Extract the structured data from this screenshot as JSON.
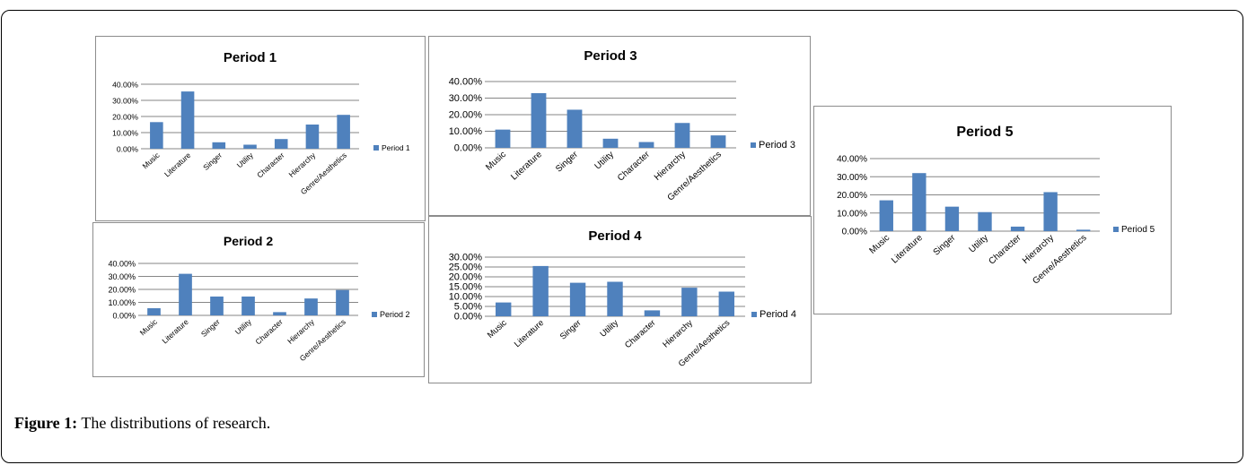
{
  "figure": {
    "caption_label": "Figure 1:",
    "caption_text": " The distributions of research."
  },
  "colors": {
    "bar": "#4f81bd",
    "grid": "#868686",
    "text": "#000000"
  },
  "chart_data": [
    {
      "type": "bar",
      "title": "Period 1",
      "categories": [
        "Music",
        "Literature",
        "Singer",
        "Utility",
        "Character",
        "Hierarchy",
        "Genre/Aesthetics"
      ],
      "values": [
        16.5,
        35.5,
        4.0,
        2.5,
        6.0,
        15.0,
        21.0
      ],
      "yticks": [
        "0.00%",
        "10.00%",
        "20.00%",
        "30.00%",
        "40.00%"
      ],
      "ylim": [
        0,
        40
      ],
      "legend": "Period 1",
      "legend_position": "right"
    },
    {
      "type": "bar",
      "title": "Period 2",
      "categories": [
        "Music",
        "Literature",
        "Singer",
        "Utility",
        "Character",
        "Hierarchy",
        "Genre/Aesthetics"
      ],
      "values": [
        5.5,
        32.0,
        14.5,
        14.5,
        2.5,
        13.0,
        19.5
      ],
      "yticks": [
        "0.00%",
        "10.00%",
        "20.00%",
        "30.00%",
        "40.00%"
      ],
      "ylim": [
        0,
        40
      ],
      "legend": "Period 2",
      "legend_position": "right"
    },
    {
      "type": "bar",
      "title": "Period 3",
      "categories": [
        "Music",
        "Literature",
        "Singer",
        "Utility",
        "Character",
        "Hierarchy",
        "Genre/Aesthetics"
      ],
      "values": [
        11.0,
        33.0,
        23.0,
        5.5,
        3.5,
        15.0,
        7.5
      ],
      "yticks": [
        "0.00%",
        "10.00%",
        "20.00%",
        "30.00%",
        "40.00%"
      ],
      "ylim": [
        0,
        40
      ],
      "legend": "Period 3",
      "legend_position": "right"
    },
    {
      "type": "bar",
      "title": "Period 4",
      "categories": [
        "Music",
        "Literature",
        "Singer",
        "Utility",
        "Character",
        "Hierarchy",
        "Genre/Aesthetics"
      ],
      "values": [
        7.0,
        25.5,
        17.0,
        17.5,
        3.0,
        14.5,
        12.5
      ],
      "yticks": [
        "0.00%",
        "5.00%",
        "10.00%",
        "15.00%",
        "20.00%",
        "25.00%",
        "30.00%"
      ],
      "ylim": [
        0,
        30
      ],
      "legend": "Period 4",
      "legend_position": "right"
    },
    {
      "type": "bar",
      "title": "Period 5",
      "categories": [
        "Music",
        "Literature",
        "Singer",
        "Utility",
        "Character",
        "Hierarchy",
        "Genre/Aesthetics"
      ],
      "values": [
        17.0,
        32.0,
        13.5,
        10.5,
        2.5,
        21.5,
        0.8
      ],
      "yticks": [
        "0.00%",
        "10.00%",
        "20.00%",
        "30.00%",
        "40.00%"
      ],
      "ylim": [
        0,
        40
      ],
      "legend": "Period 5",
      "legend_position": "right"
    }
  ]
}
